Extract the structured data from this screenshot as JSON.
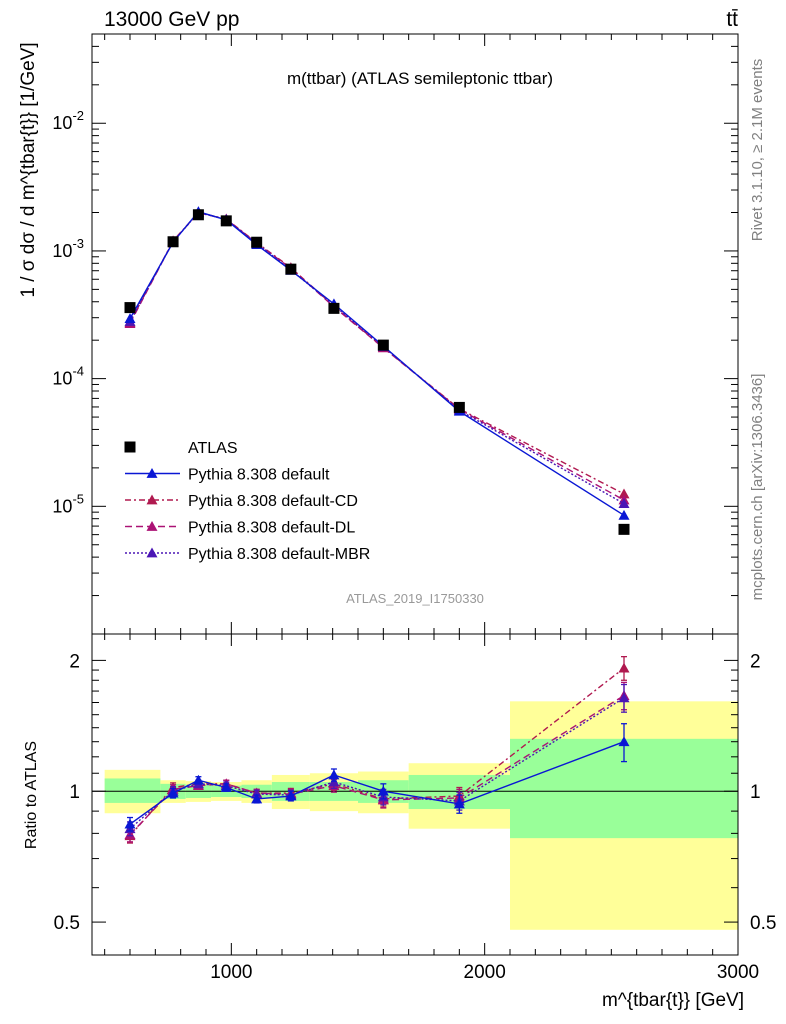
{
  "header": {
    "left": "13000 GeV pp",
    "right": "tt̄"
  },
  "side_text": {
    "rivet": "Rivet 3.1.10, ≥ 2.1M events",
    "mcplots": "mcplots.cern.ch [arXiv:1306.3436]"
  },
  "chart_data": {
    "type": "line",
    "title": "m(ttbar) (ATLAS semileptonic ttbar)",
    "watermark": "ATLAS_2019_I1750330",
    "xlabel": "m^{tbar{t}} [GeV]",
    "ylabel": "1 / σ dσ / d m^{tbar{t}} [1/GeV]",
    "ratio_ylabel": "Ratio to ATLAS",
    "xlim": [
      450,
      3000
    ],
    "ylim": [
      1e-06,
      0.05
    ],
    "yscale": "log",
    "ratio_ylim": [
      0.42,
      2.3
    ],
    "x_ticks": [
      1000,
      2000,
      3000
    ],
    "y_tick_labels": [
      "10^-5",
      "10^-4",
      "10^-3",
      "10^-2"
    ],
    "ratio_tick_labels": [
      "0.5",
      "1",
      "2"
    ],
    "legend_position": "bottom-left",
    "bins": [
      {
        "lo": 500,
        "hi": 720
      },
      {
        "lo": 720,
        "hi": 820
      },
      {
        "lo": 820,
        "hi": 920
      },
      {
        "lo": 920,
        "hi": 1040
      },
      {
        "lo": 1040,
        "hi": 1160
      },
      {
        "lo": 1160,
        "hi": 1310
      },
      {
        "lo": 1310,
        "hi": 1500
      },
      {
        "lo": 1500,
        "hi": 1700
      },
      {
        "lo": 1700,
        "hi": 2100
      },
      {
        "lo": 2100,
        "hi": 3000
      }
    ],
    "x": [
      600,
      770,
      870,
      980,
      1100,
      1235,
      1405,
      1600,
      1900,
      2550
    ],
    "data": {
      "name": "ATLAS",
      "values": [
        0.00036,
        0.00118,
        0.00192,
        0.00172,
        0.00117,
        0.00072,
        0.000355,
        0.000183,
        5.95e-05,
        6.6e-06
      ],
      "ratio_band_inner": [
        [
          0.94,
          1.07
        ],
        [
          0.96,
          1.04
        ],
        [
          0.965,
          1.035
        ],
        [
          0.97,
          1.03
        ],
        [
          0.965,
          1.035
        ],
        [
          0.95,
          1.05
        ],
        [
          0.95,
          1.05
        ],
        [
          0.94,
          1.06
        ],
        [
          0.91,
          1.09
        ],
        [
          0.78,
          1.32
        ]
      ],
      "ratio_band_outer": [
        [
          0.89,
          1.12
        ],
        [
          0.94,
          1.06
        ],
        [
          0.945,
          1.055
        ],
        [
          0.95,
          1.05
        ],
        [
          0.94,
          1.06
        ],
        [
          0.91,
          1.09
        ],
        [
          0.9,
          1.1
        ],
        [
          0.89,
          1.11
        ],
        [
          0.82,
          1.16
        ],
        [
          0.48,
          1.61
        ]
      ]
    },
    "series": [
      {
        "name": "Pythia 8.308 default",
        "color": "#0a17d4",
        "dash": "",
        "values": [
          0.000295,
          0.00117,
          0.00203,
          0.00175,
          0.00112,
          0.000705,
          0.000385,
          0.00018,
          5.55e-05,
          8.5e-06
        ],
        "ratio": [
          0.84,
          0.99,
          1.06,
          1.02,
          0.96,
          0.975,
          1.09,
          1.0,
          0.935,
          1.3
        ],
        "ratio_err": [
          0.03,
          0.025,
          0.02,
          0.02,
          0.02,
          0.025,
          0.035,
          0.04,
          0.045,
          0.13
        ]
      },
      {
        "name": "Pythia 8.308 default-CD",
        "color": "#b0194f",
        "dash": "6,3,2,3",
        "values": [
          0.000275,
          0.0012,
          0.002,
          0.00178,
          0.00116,
          0.00074,
          0.00037,
          0.000175,
          5.8e-05,
          1.25e-05
        ],
        "ratio": [
          0.79,
          1.02,
          1.04,
          1.04,
          0.99,
          0.99,
          1.04,
          0.96,
          0.975,
          1.92
        ],
        "ratio_err": [
          0.03,
          0.025,
          0.02,
          0.02,
          0.02,
          0.025,
          0.035,
          0.04,
          0.045,
          0.12
        ]
      },
      {
        "name": "Pythia 8.308 default-DL",
        "color": "#ab1275",
        "dash": "7,4",
        "values": [
          0.00027,
          0.00119,
          0.00199,
          0.00177,
          0.00115,
          0.00073,
          0.000365,
          0.000174,
          5.75e-05,
          1.12e-05
        ],
        "ratio": [
          0.795,
          1.01,
          1.03,
          1.04,
          0.99,
          0.985,
          1.03,
          0.955,
          0.965,
          1.66
        ],
        "ratio_err": [
          0.03,
          0.025,
          0.02,
          0.02,
          0.02,
          0.025,
          0.035,
          0.04,
          0.045,
          0.12
        ]
      },
      {
        "name": "Pythia 8.308 default-MBR",
        "color": "#4b16b5",
        "dash": "2,2",
        "values": [
          0.00028,
          0.00118,
          0.002,
          0.00176,
          0.00115,
          0.00071,
          0.000375,
          0.000178,
          5.65e-05,
          1.05e-05
        ],
        "ratio": [
          0.82,
          1.0,
          1.04,
          1.03,
          0.985,
          0.98,
          1.05,
          0.97,
          0.95,
          1.64
        ],
        "ratio_err": [
          0.03,
          0.025,
          0.02,
          0.02,
          0.02,
          0.025,
          0.035,
          0.04,
          0.045,
          0.12
        ]
      }
    ]
  }
}
